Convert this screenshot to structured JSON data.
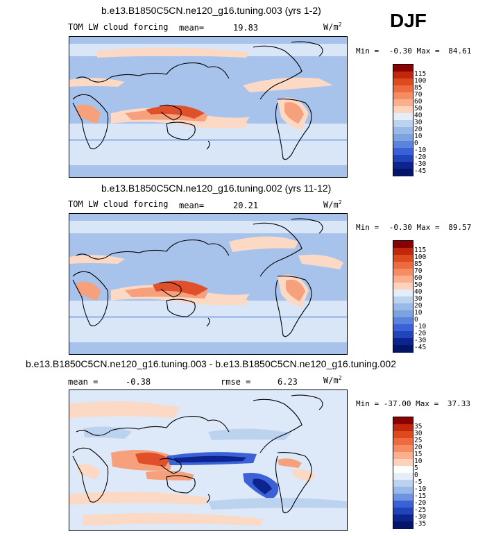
{
  "season": "DJF",
  "panels": [
    {
      "title": "b.e13.B1850C5CN.ne120_g16.tuning.003 (yrs 1-2)",
      "left_label": "TOM LW cloud forcing",
      "mean_label": "mean=",
      "mean_value": "19.83",
      "units": "W/m",
      "units_sup": "2",
      "min_label": "Min =",
      "min_value": "-0.30",
      "max_label": "Max =",
      "max_value": "84.61",
      "colorbar": {
        "labels": [
          "115",
          "100",
          "85",
          "70",
          "60",
          "50",
          "40",
          "30",
          "20",
          "10",
          "0",
          "-10",
          "-20",
          "-30",
          "-45"
        ],
        "colors": [
          "#8b0000",
          "#c0270b",
          "#de4a1e",
          "#ee6a3f",
          "#f68c63",
          "#fbaf8c",
          "#fdd3bd",
          "#e4edf8",
          "#bcd3f0",
          "#99b9e8",
          "#7ea2e0",
          "#5a83de",
          "#3a62d6",
          "#2244bb",
          "#0d2490",
          "#041466"
        ]
      }
    },
    {
      "title": "b.e13.B1850C5CN.ne120_g16.tuning.002 (yrs 11-12)",
      "left_label": "TOM LW cloud forcing",
      "mean_label": "mean=",
      "mean_value": "20.21",
      "units": "W/m",
      "units_sup": "2",
      "min_label": "Min =",
      "min_value": "-0.30",
      "max_label": "Max =",
      "max_value": "89.57",
      "colorbar": {
        "labels": [
          "115",
          "100",
          "85",
          "70",
          "60",
          "50",
          "40",
          "30",
          "20",
          "10",
          "0",
          "-10",
          "-20",
          "-30",
          "-45"
        ],
        "colors": [
          "#8b0000",
          "#c0270b",
          "#de4a1e",
          "#ee6a3f",
          "#f68c63",
          "#fbaf8c",
          "#fdd3bd",
          "#e4edf8",
          "#bcd3f0",
          "#99b9e8",
          "#7ea2e0",
          "#5a83de",
          "#3a62d6",
          "#2244bb",
          "#0d2490",
          "#041466"
        ]
      }
    },
    {
      "title": "b.e13.B1850C5CN.ne120_g16.tuning.003 - b.e13.B1850C5CN.ne120_g16.tuning.002",
      "left_label": "mean =",
      "mean_label": "",
      "mean_value": "-0.38",
      "rmse_label": "rmse =",
      "rmse_value": "6.23",
      "units": "W/m",
      "units_sup": "2",
      "min_label": "Min =",
      "min_value": "-37.00",
      "max_label": "Max =",
      "max_value": "37.33",
      "colorbar": {
        "labels": [
          "35",
          "30",
          "25",
          "20",
          "15",
          "10",
          "5",
          "0",
          "-5",
          "-10",
          "-15",
          "-20",
          "-25",
          "-30",
          "-35"
        ],
        "colors": [
          "#8b0000",
          "#c0270b",
          "#de4a1e",
          "#ee6a3f",
          "#f68c63",
          "#fbaf8c",
          "#fdd3bd",
          "#ffffff",
          "#e4edf8",
          "#bcd3f0",
          "#99b9e8",
          "#6f93e0",
          "#3a62d6",
          "#2244bb",
          "#0d2490",
          "#041466"
        ]
      }
    }
  ],
  "colors": {
    "map_base": "#a7c3ec",
    "map_light": "#d8e6f7",
    "map_pale_orange": "#fbd9c5",
    "map_orange": "#f6a07c",
    "map_red": "#e0502a",
    "diff_base": "#dde9f8",
    "diff_blue": "#3a62d6",
    "diff_red": "#e0502a"
  }
}
